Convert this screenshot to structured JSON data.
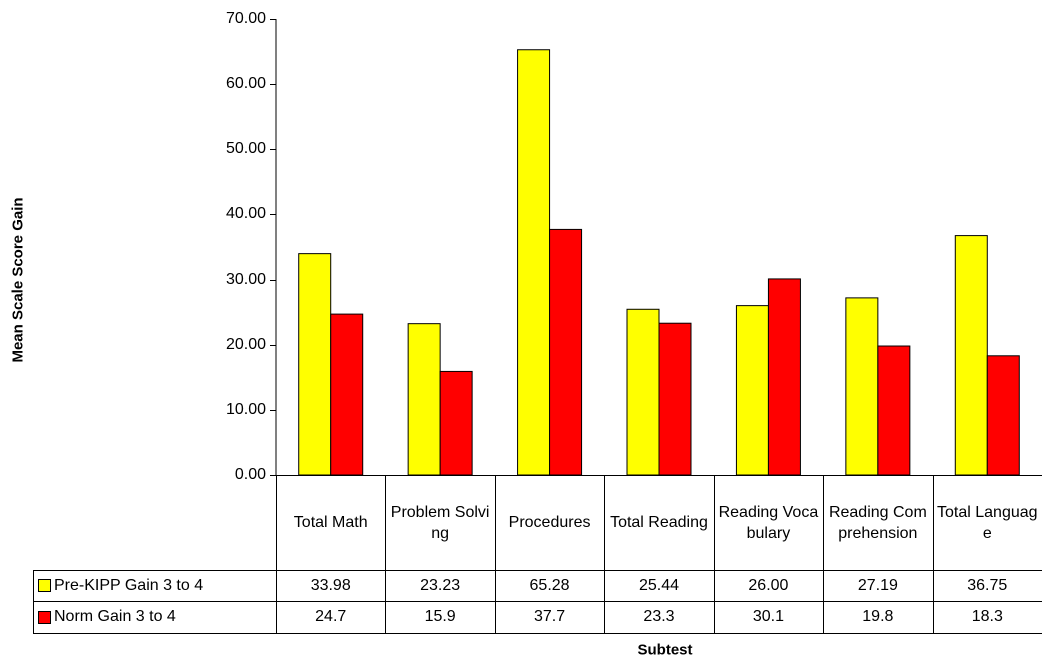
{
  "chart_data": {
    "type": "bar",
    "xlabel": "Subtest",
    "ylabel": "Mean Scale Score Gain",
    "ylim": [
      0,
      70
    ],
    "yticks": [
      "0.00",
      "10.00",
      "20.00",
      "30.00",
      "40.00",
      "50.00",
      "60.00",
      "70.00"
    ],
    "grid": false,
    "legend": "data-table",
    "categories": [
      "Total Math",
      "Problem Solving",
      "Procedures",
      "Total Reading",
      "Reading Vocabulary",
      "Reading Comprehension",
      "Total Language"
    ],
    "series": [
      {
        "name": "Pre-KIPP Gain 3 to 4",
        "color": "#ffff00",
        "values": [
          33.98,
          23.23,
          65.28,
          25.44,
          26.0,
          27.19,
          36.75
        ],
        "labels": [
          "33.98",
          "23.23",
          "65.28",
          "25.44",
          "26.00",
          "27.19",
          "36.75"
        ]
      },
      {
        "name": "Norm Gain 3 to 4",
        "color": "#ff0000",
        "values": [
          24.7,
          15.9,
          37.7,
          23.3,
          30.1,
          19.8,
          18.3
        ],
        "labels": [
          "24.7",
          "15.9",
          "37.7",
          "23.3",
          "30.1",
          "19.8",
          "18.3"
        ]
      }
    ]
  }
}
